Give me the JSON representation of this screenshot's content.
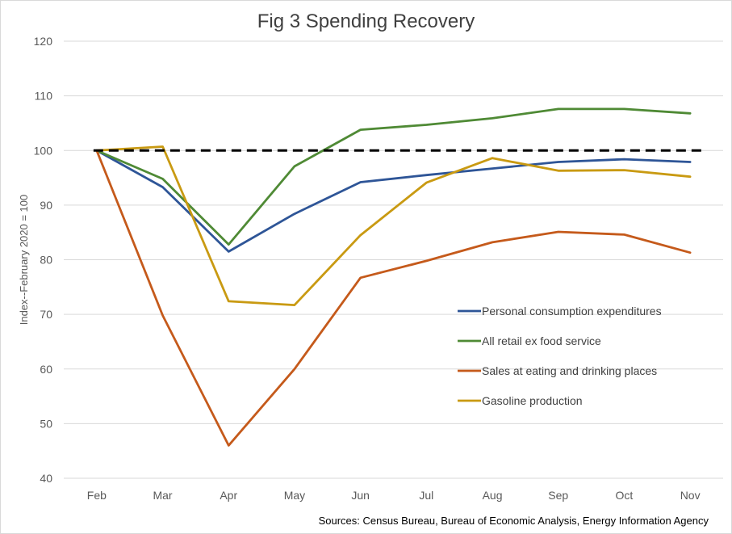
{
  "chart_data": {
    "type": "line",
    "title": "Fig 3 Spending Recovery",
    "ylabel": "Index--February 2020 = 100",
    "xlabel": "",
    "categories": [
      "Feb",
      "Mar",
      "Apr",
      "May",
      "Jun",
      "Jul",
      "Aug",
      "Sep",
      "Oct",
      "Nov"
    ],
    "ylim": [
      40,
      120
    ],
    "yticks": [
      40,
      50,
      60,
      70,
      80,
      90,
      100,
      110,
      120
    ],
    "grid": true,
    "legend_position": "bottom-right inside plot",
    "reference_line": {
      "value": 100,
      "style": "dashed",
      "color": "#000000"
    },
    "series": [
      {
        "name": "Personal consumption expenditures",
        "color": "#2e5597",
        "values": [
          100,
          93.3,
          81.5,
          88.4,
          94.2,
          95.5,
          96.7,
          97.9,
          98.4,
          97.9
        ]
      },
      {
        "name": "All retail ex food service",
        "color": "#4f8a35",
        "values": [
          100,
          94.8,
          82.8,
          97.1,
          103.8,
          104.7,
          105.9,
          107.6,
          107.6,
          106.8
        ]
      },
      {
        "name": "Sales at eating and drinking places",
        "color": "#c55a1b",
        "values": [
          100,
          69.8,
          46.0,
          60.0,
          76.7,
          79.8,
          83.2,
          85.1,
          84.6,
          81.3
        ]
      },
      {
        "name": "Gasoline production",
        "color": "#c99a12",
        "values": [
          100,
          100.7,
          72.4,
          71.7,
          84.5,
          94.1,
          98.6,
          96.3,
          96.4,
          95.2
        ]
      }
    ]
  },
  "source_note": "Sources: Census Bureau, Bureau of Economic Analysis, Energy Information Agency"
}
